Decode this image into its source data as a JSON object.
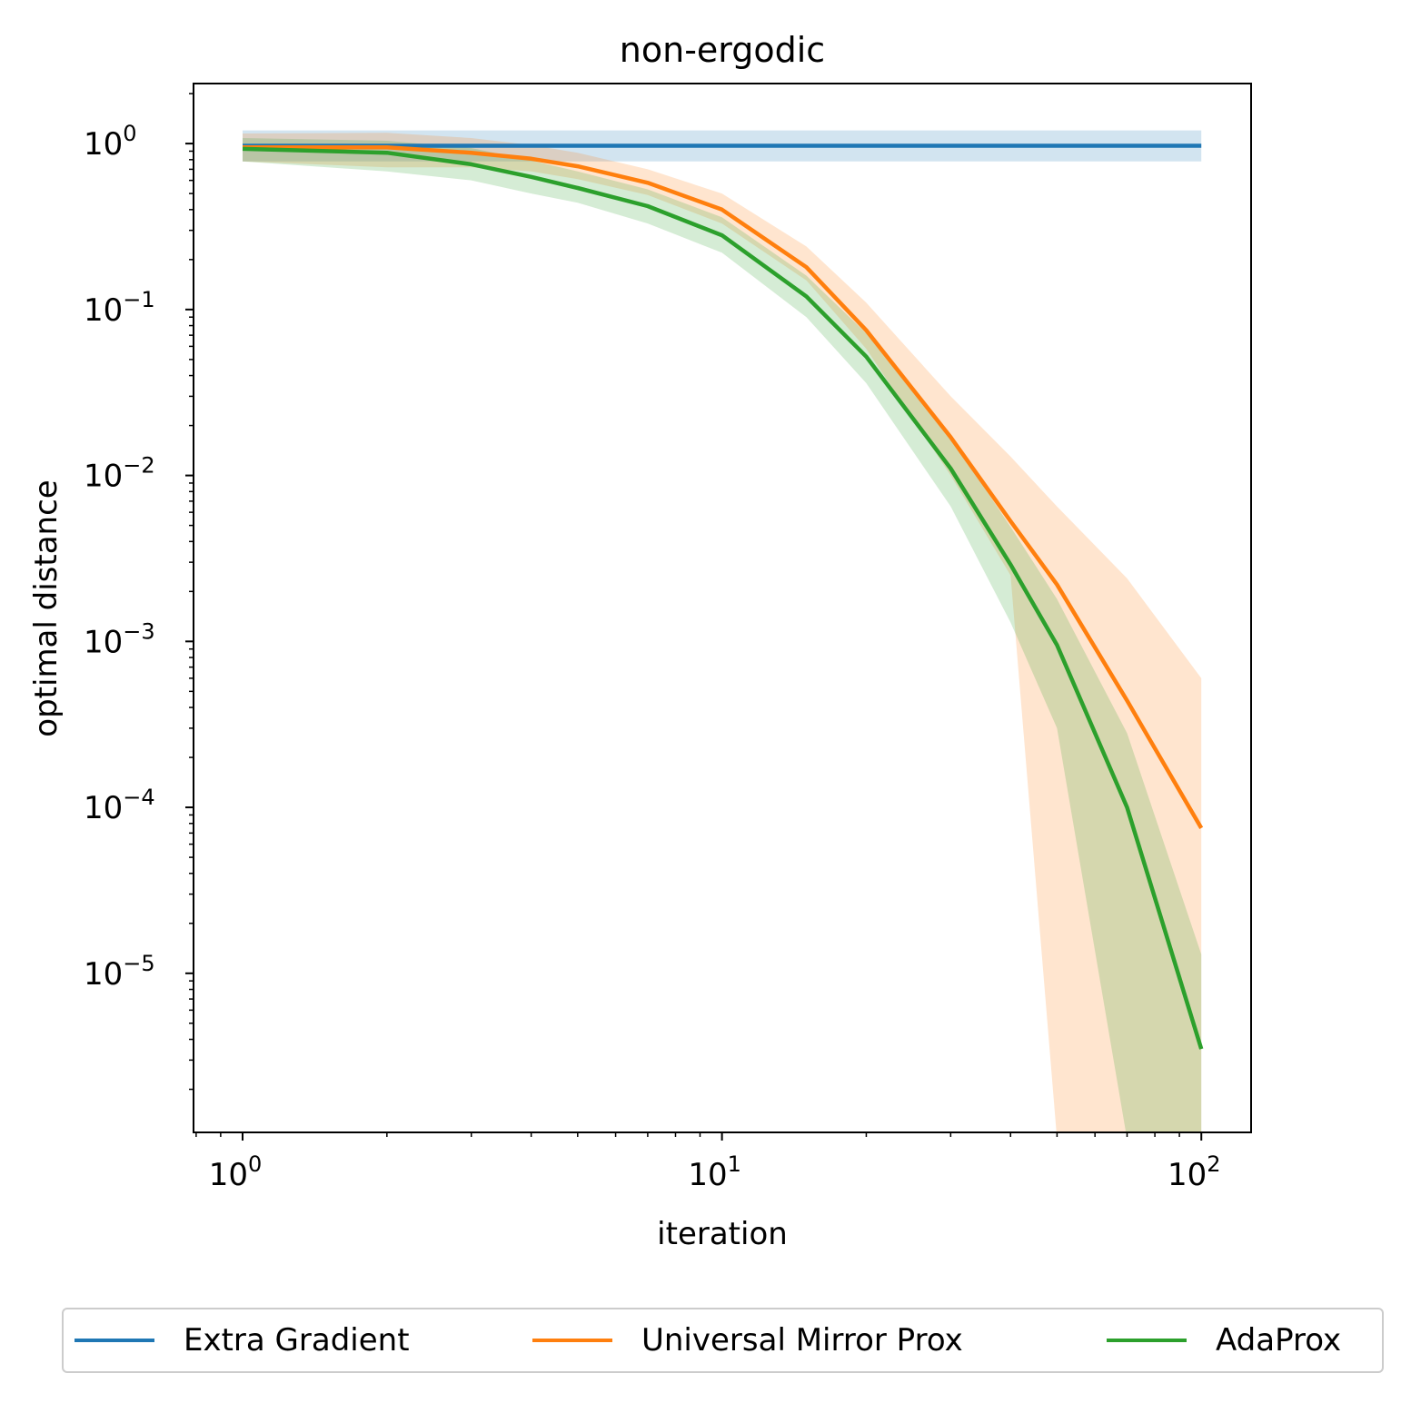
{
  "chart_data": {
    "type": "line",
    "title": "non-ergodic",
    "xlabel": "iteration",
    "ylabel": "optimal distance",
    "xscale": "log",
    "yscale": "log",
    "xlim": [
      0.79,
      127
    ],
    "ylim": [
      1.1e-06,
      2.3
    ],
    "x_ticks": [
      {
        "value": 1,
        "base": "10",
        "exp": "0"
      },
      {
        "value": 10,
        "base": "10",
        "exp": "1"
      },
      {
        "value": 100,
        "base": "10",
        "exp": "2"
      }
    ],
    "y_ticks": [
      {
        "value": 1,
        "base": "10",
        "exp": "0"
      },
      {
        "value": 0.1,
        "base": "10",
        "exp": "−1"
      },
      {
        "value": 0.01,
        "base": "10",
        "exp": "−2"
      },
      {
        "value": 0.001,
        "base": "10",
        "exp": "−3"
      },
      {
        "value": 0.0001,
        "base": "10",
        "exp": "−4"
      },
      {
        "value": 1e-05,
        "base": "10",
        "exp": "−5"
      }
    ],
    "legend_position": "bottom",
    "series": [
      {
        "name": "Extra Gradient",
        "color": "#1f77b4",
        "x": [
          1,
          2,
          5,
          10,
          20,
          50,
          100
        ],
        "y": [
          0.97,
          0.97,
          0.97,
          0.97,
          0.97,
          0.97,
          0.97
        ],
        "lower": [
          0.78,
          0.78,
          0.78,
          0.78,
          0.78,
          0.78,
          0.78
        ],
        "upper": [
          1.2,
          1.2,
          1.2,
          1.2,
          1.2,
          1.2,
          1.2
        ]
      },
      {
        "name": "Universal Mirror Prox",
        "color": "#ff7f0e",
        "x": [
          1,
          2,
          3,
          4,
          5,
          7,
          10,
          15,
          20,
          30,
          40,
          50,
          70,
          100
        ],
        "y": [
          0.95,
          0.95,
          0.88,
          0.81,
          0.73,
          0.58,
          0.4,
          0.18,
          0.075,
          0.017,
          0.0053,
          0.0022,
          0.00044,
          7.5e-05
        ],
        "lower": [
          0.78,
          0.72,
          0.72,
          0.68,
          0.61,
          0.49,
          0.33,
          0.15,
          0.058,
          0.01,
          0.0025,
          1e-06,
          1e-06,
          1e-06
        ],
        "upper": [
          1.15,
          1.16,
          1.08,
          0.98,
          0.88,
          0.7,
          0.5,
          0.24,
          0.11,
          0.03,
          0.013,
          0.0065,
          0.0024,
          0.0006
        ]
      },
      {
        "name": "AdaProx",
        "color": "#2ca02c",
        "x": [
          1,
          2,
          3,
          4,
          5,
          7,
          10,
          15,
          20,
          30,
          40,
          50,
          70,
          100
        ],
        "y": [
          0.93,
          0.88,
          0.75,
          0.63,
          0.54,
          0.42,
          0.28,
          0.12,
          0.052,
          0.011,
          0.0029,
          0.00095,
          0.0001,
          3.5e-06
        ],
        "lower": [
          0.78,
          0.68,
          0.6,
          0.5,
          0.44,
          0.33,
          0.22,
          0.09,
          0.036,
          0.0065,
          0.0013,
          0.0003,
          1e-06,
          1e-06
        ],
        "upper": [
          1.08,
          1.04,
          0.94,
          0.79,
          0.68,
          0.53,
          0.36,
          0.16,
          0.072,
          0.017,
          0.0049,
          0.0018,
          0.00028,
          1.3e-05
        ]
      }
    ]
  }
}
